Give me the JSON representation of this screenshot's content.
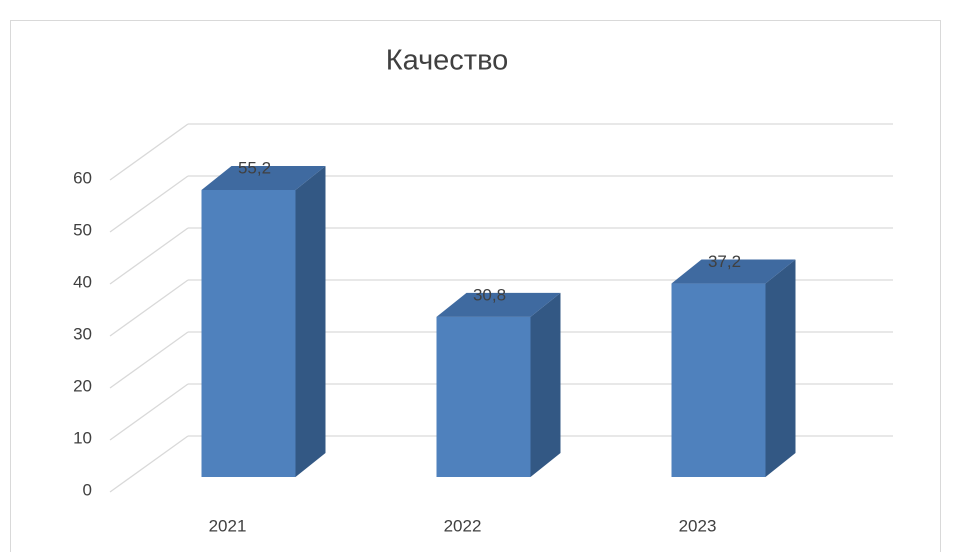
{
  "chart_data": {
    "type": "bar",
    "title": "Качество",
    "categories": [
      "2021",
      "2022",
      "2023"
    ],
    "values": [
      55.2,
      30.8,
      37.2
    ],
    "value_labels": [
      "55,2",
      "30,8",
      "37,2"
    ],
    "color": "#4f81bd",
    "ylim": [
      0,
      60
    ],
    "yticks": [
      0,
      10,
      20,
      30,
      40,
      50,
      60
    ],
    "grid": true
  }
}
